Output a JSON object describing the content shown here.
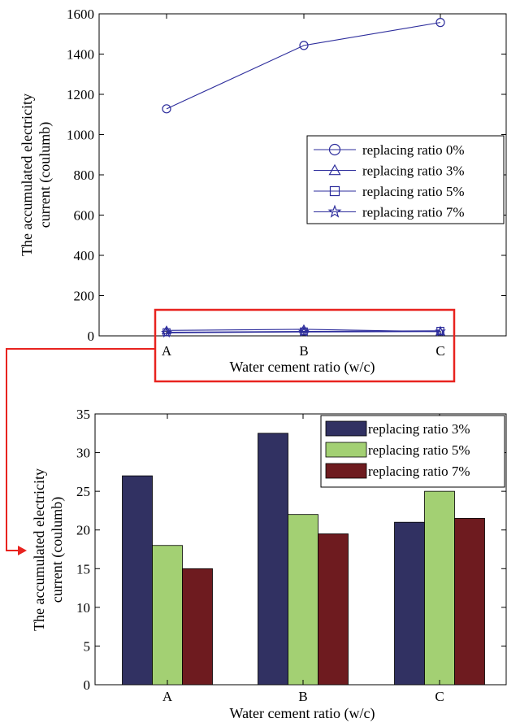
{
  "chart_data": [
    {
      "type": "line",
      "categories": [
        "A",
        "B",
        "C"
      ],
      "series": [
        {
          "name": "replacing ratio 0%",
          "marker": "circle",
          "values": [
            1128,
            1443,
            1557
          ]
        },
        {
          "name": "replacing ratio 3%",
          "marker": "triangle",
          "values": [
            27,
            32.5,
            21
          ]
        },
        {
          "name": "replacing ratio 5%",
          "marker": "square",
          "values": [
            18,
            22,
            25
          ]
        },
        {
          "name": "replacing ratio 7%",
          "marker": "star",
          "values": [
            15,
            19.5,
            21.5
          ]
        }
      ],
      "xlabel": "Water cement ratio (w/c)",
      "ylabel": [
        "The accumulated electricity",
        "current (coulumb)"
      ],
      "ylim": [
        0,
        1600
      ],
      "yticks": [
        0,
        200,
        400,
        600,
        800,
        1000,
        1200,
        1400,
        1600
      ],
      "line_color": "#2d2d9c",
      "legend_position": "right",
      "highlight_box_color": "#e8231f"
    },
    {
      "type": "bar",
      "categories": [
        "A",
        "B",
        "C"
      ],
      "series": [
        {
          "name": "replacing ratio 3%",
          "color": "#313162",
          "values": [
            27,
            32.5,
            21
          ]
        },
        {
          "name": "replacing ratio 5%",
          "color": "#a3d073",
          "values": [
            18,
            22,
            25
          ]
        },
        {
          "name": "replacing ratio 7%",
          "color": "#6e1b1f",
          "values": [
            15,
            19.5,
            21.5
          ]
        }
      ],
      "xlabel": "Water cement ratio (w/c)",
      "ylabel": [
        "The accumulated electricity",
        "current (coulumb)"
      ],
      "ylim": [
        0,
        35
      ],
      "yticks": [
        0,
        5,
        10,
        15,
        20,
        25,
        30,
        35
      ],
      "legend_position": "top-right"
    }
  ]
}
